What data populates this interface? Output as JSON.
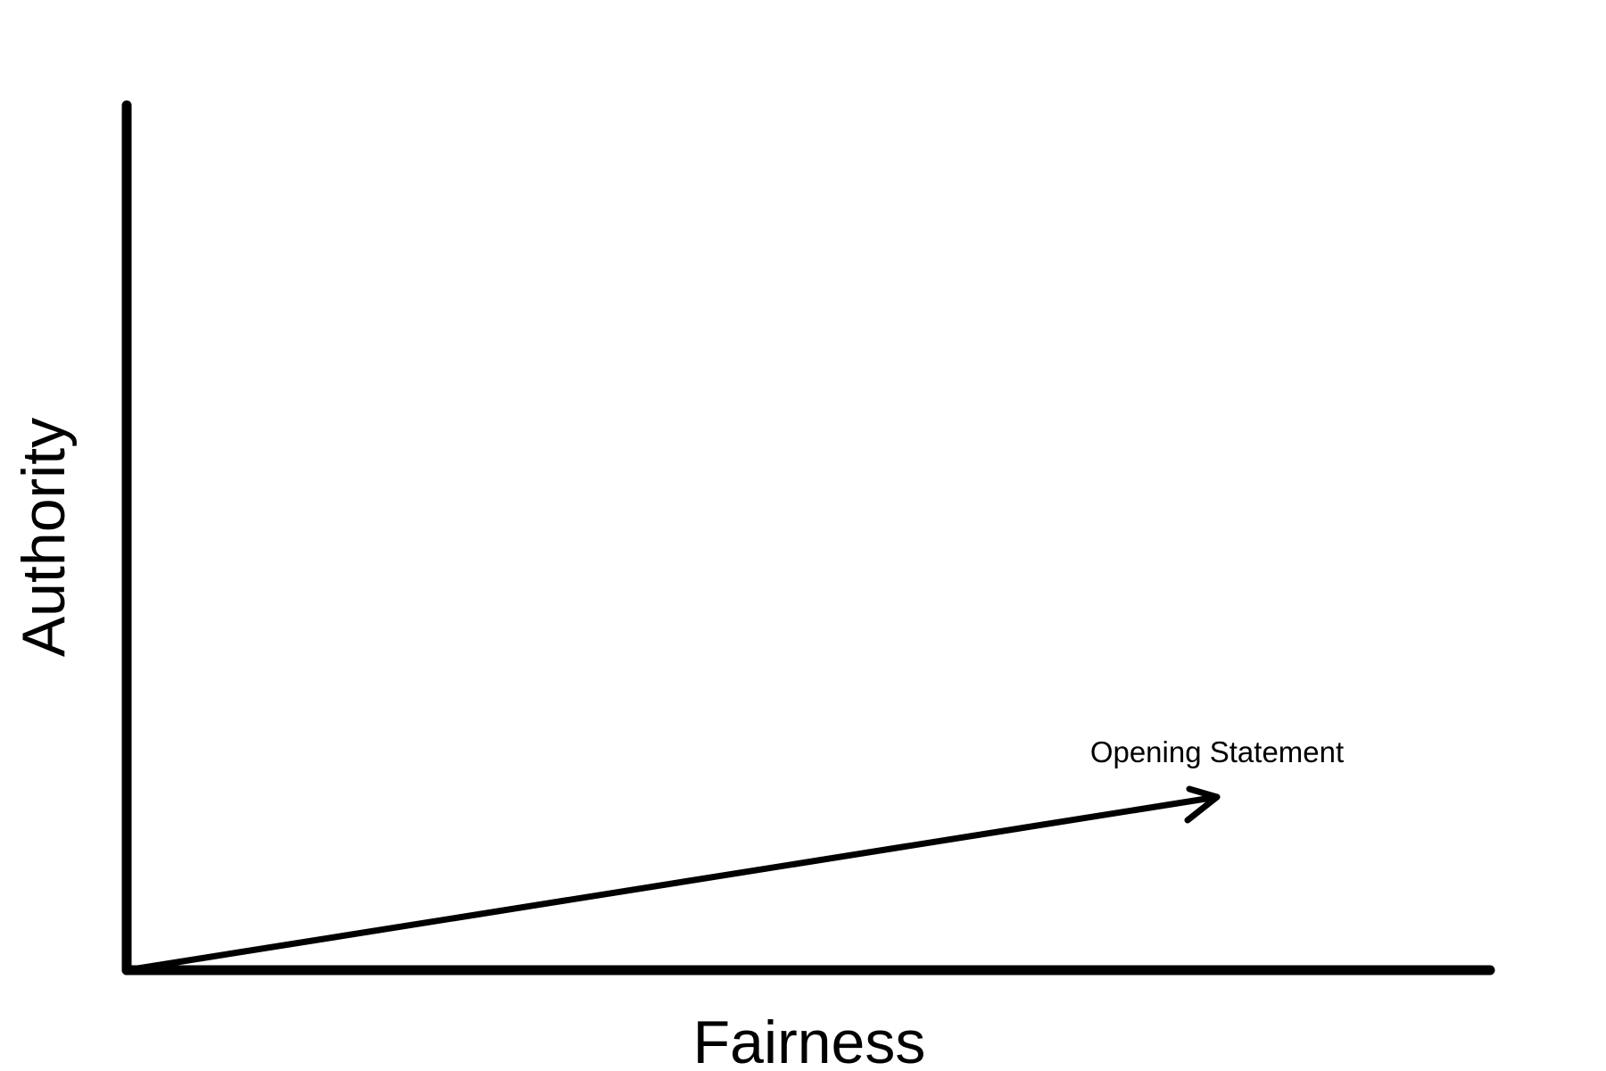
{
  "diagram": {
    "x_axis_label": "Fairness",
    "y_axis_label": "Authority",
    "arrow_label": "Opening Statement",
    "stroke_color": "#000000",
    "background_color": "#ffffff"
  }
}
